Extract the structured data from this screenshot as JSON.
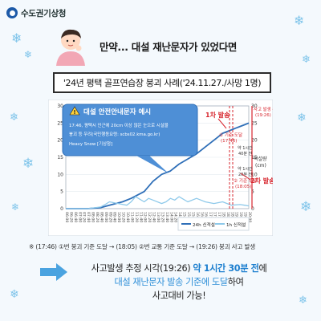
{
  "header": {
    "logo_text": "수도권기상청"
  },
  "headline": "만약... 대설 재난문자가 있었다면",
  "case_title": "'24년 평택 골프연습장 붕괴 사례('24.11.27./사망 1명)",
  "chart_data": {
    "type": "line",
    "x_ticks": [
      "06:00",
      "06:20",
      "06:40",
      "07:00",
      "07:20",
      "07:40",
      "08:00",
      "08:20",
      "08:40",
      "09:00",
      "09:20",
      "09:40",
      "10:00",
      "10:20",
      "10:40",
      "11:00",
      "11:20",
      "11:40",
      "12:00",
      "12:20",
      "12:40",
      "13:00",
      "13:20",
      "13:40",
      "14:00",
      "14:20",
      "14:40",
      "15:00",
      "15:20",
      "15:40",
      "16:00",
      "16:20",
      "16:40",
      "17:00",
      "17:20",
      "17:40",
      "18:00",
      "18:20",
      "18:40",
      "19:00",
      "19:20",
      "19:40",
      "20:00"
    ],
    "y_left_ticks": [
      "0",
      "5",
      "10",
      "15",
      "20",
      "25",
      "30"
    ],
    "y_right_ticks": [
      "0",
      "5",
      "10",
      "15",
      "20",
      "25",
      "30"
    ],
    "ylim": [
      0,
      30
    ],
    "y2lim": [
      0,
      30
    ],
    "ylabel_right": "적설량\n(cm)",
    "grid": true,
    "legend": "bottom-right",
    "series": [
      {
        "name": "24h 신적설",
        "color": "#2f6fb8",
        "x_index": [
          0,
          3,
          5,
          8,
          10,
          13,
          15,
          18,
          20,
          22,
          24,
          26,
          28,
          30,
          32,
          34,
          35,
          36,
          37,
          38,
          39,
          40,
          41,
          42
        ],
        "values": [
          0,
          0,
          0,
          0.3,
          1,
          2,
          3,
          5,
          8,
          10,
          11,
          13,
          14.5,
          16,
          18,
          20,
          21,
          22,
          22.5,
          23,
          23.5,
          24,
          24.5,
          25
        ]
      },
      {
        "name": "1h 신적설",
        "color": "#8ec9ea",
        "x_index": [
          0,
          3,
          5,
          8,
          9,
          10,
          12,
          14,
          15,
          16,
          18,
          19,
          20,
          22,
          23,
          24,
          25,
          26,
          28,
          30,
          31,
          32,
          34,
          36,
          38,
          40,
          41,
          42
        ],
        "values": [
          0,
          0,
          0,
          0.5,
          1.2,
          2,
          1.5,
          1,
          2,
          3.5,
          2,
          3,
          2.5,
          1.5,
          2,
          3,
          2.5,
          3.5,
          2,
          3,
          2.5,
          2,
          1.5,
          2,
          1,
          1.2,
          1,
          0.8
        ]
      }
    ],
    "alert_box": {
      "title": "대설 안전안내문자 예시",
      "lines": [
        "17:46, 평택시 인근에 20cm 이상 많은 눈으로 시설물",
        "붕괴 등 우려(국민행동요령: scbs02.kma.go.kr)",
        "Heavy Snow [기상청]"
      ]
    },
    "annotations": {
      "first_send": "1차 발송",
      "second_send": "2차 발송",
      "std1": [
        "① 기준 도달",
        "(17:46)"
      ],
      "std2": [
        "② 기준 도달",
        "(18:05)"
      ],
      "est": [
        "사고 발생 추정",
        "(19:26)"
      ],
      "gap1": [
        "약 1시간",
        "40분 전"
      ],
      "gap2": [
        "약 1시간",
        "20분 전"
      ]
    }
  },
  "footnote": "※ (17:46) ①번 붕괴 기준 도달 → (18:05) ②번 교통 기준 도달 → (19:26) 붕괴 사고 발생",
  "conclusion": {
    "l1_a": "사고발생 추정 시각(19:26) ",
    "l1_b": "약 1시간 30분 전",
    "l1_c": "에",
    "l2_a": "대설 재난문자 발송 기준에 도달",
    "l2_b": "하여",
    "l3": "사고대비 가능!"
  },
  "colors": {
    "accent": "#1d7fcf",
    "alert_red": "#d7262e",
    "line_dark": "#2f6fb8",
    "line_light": "#8ec9ea"
  }
}
